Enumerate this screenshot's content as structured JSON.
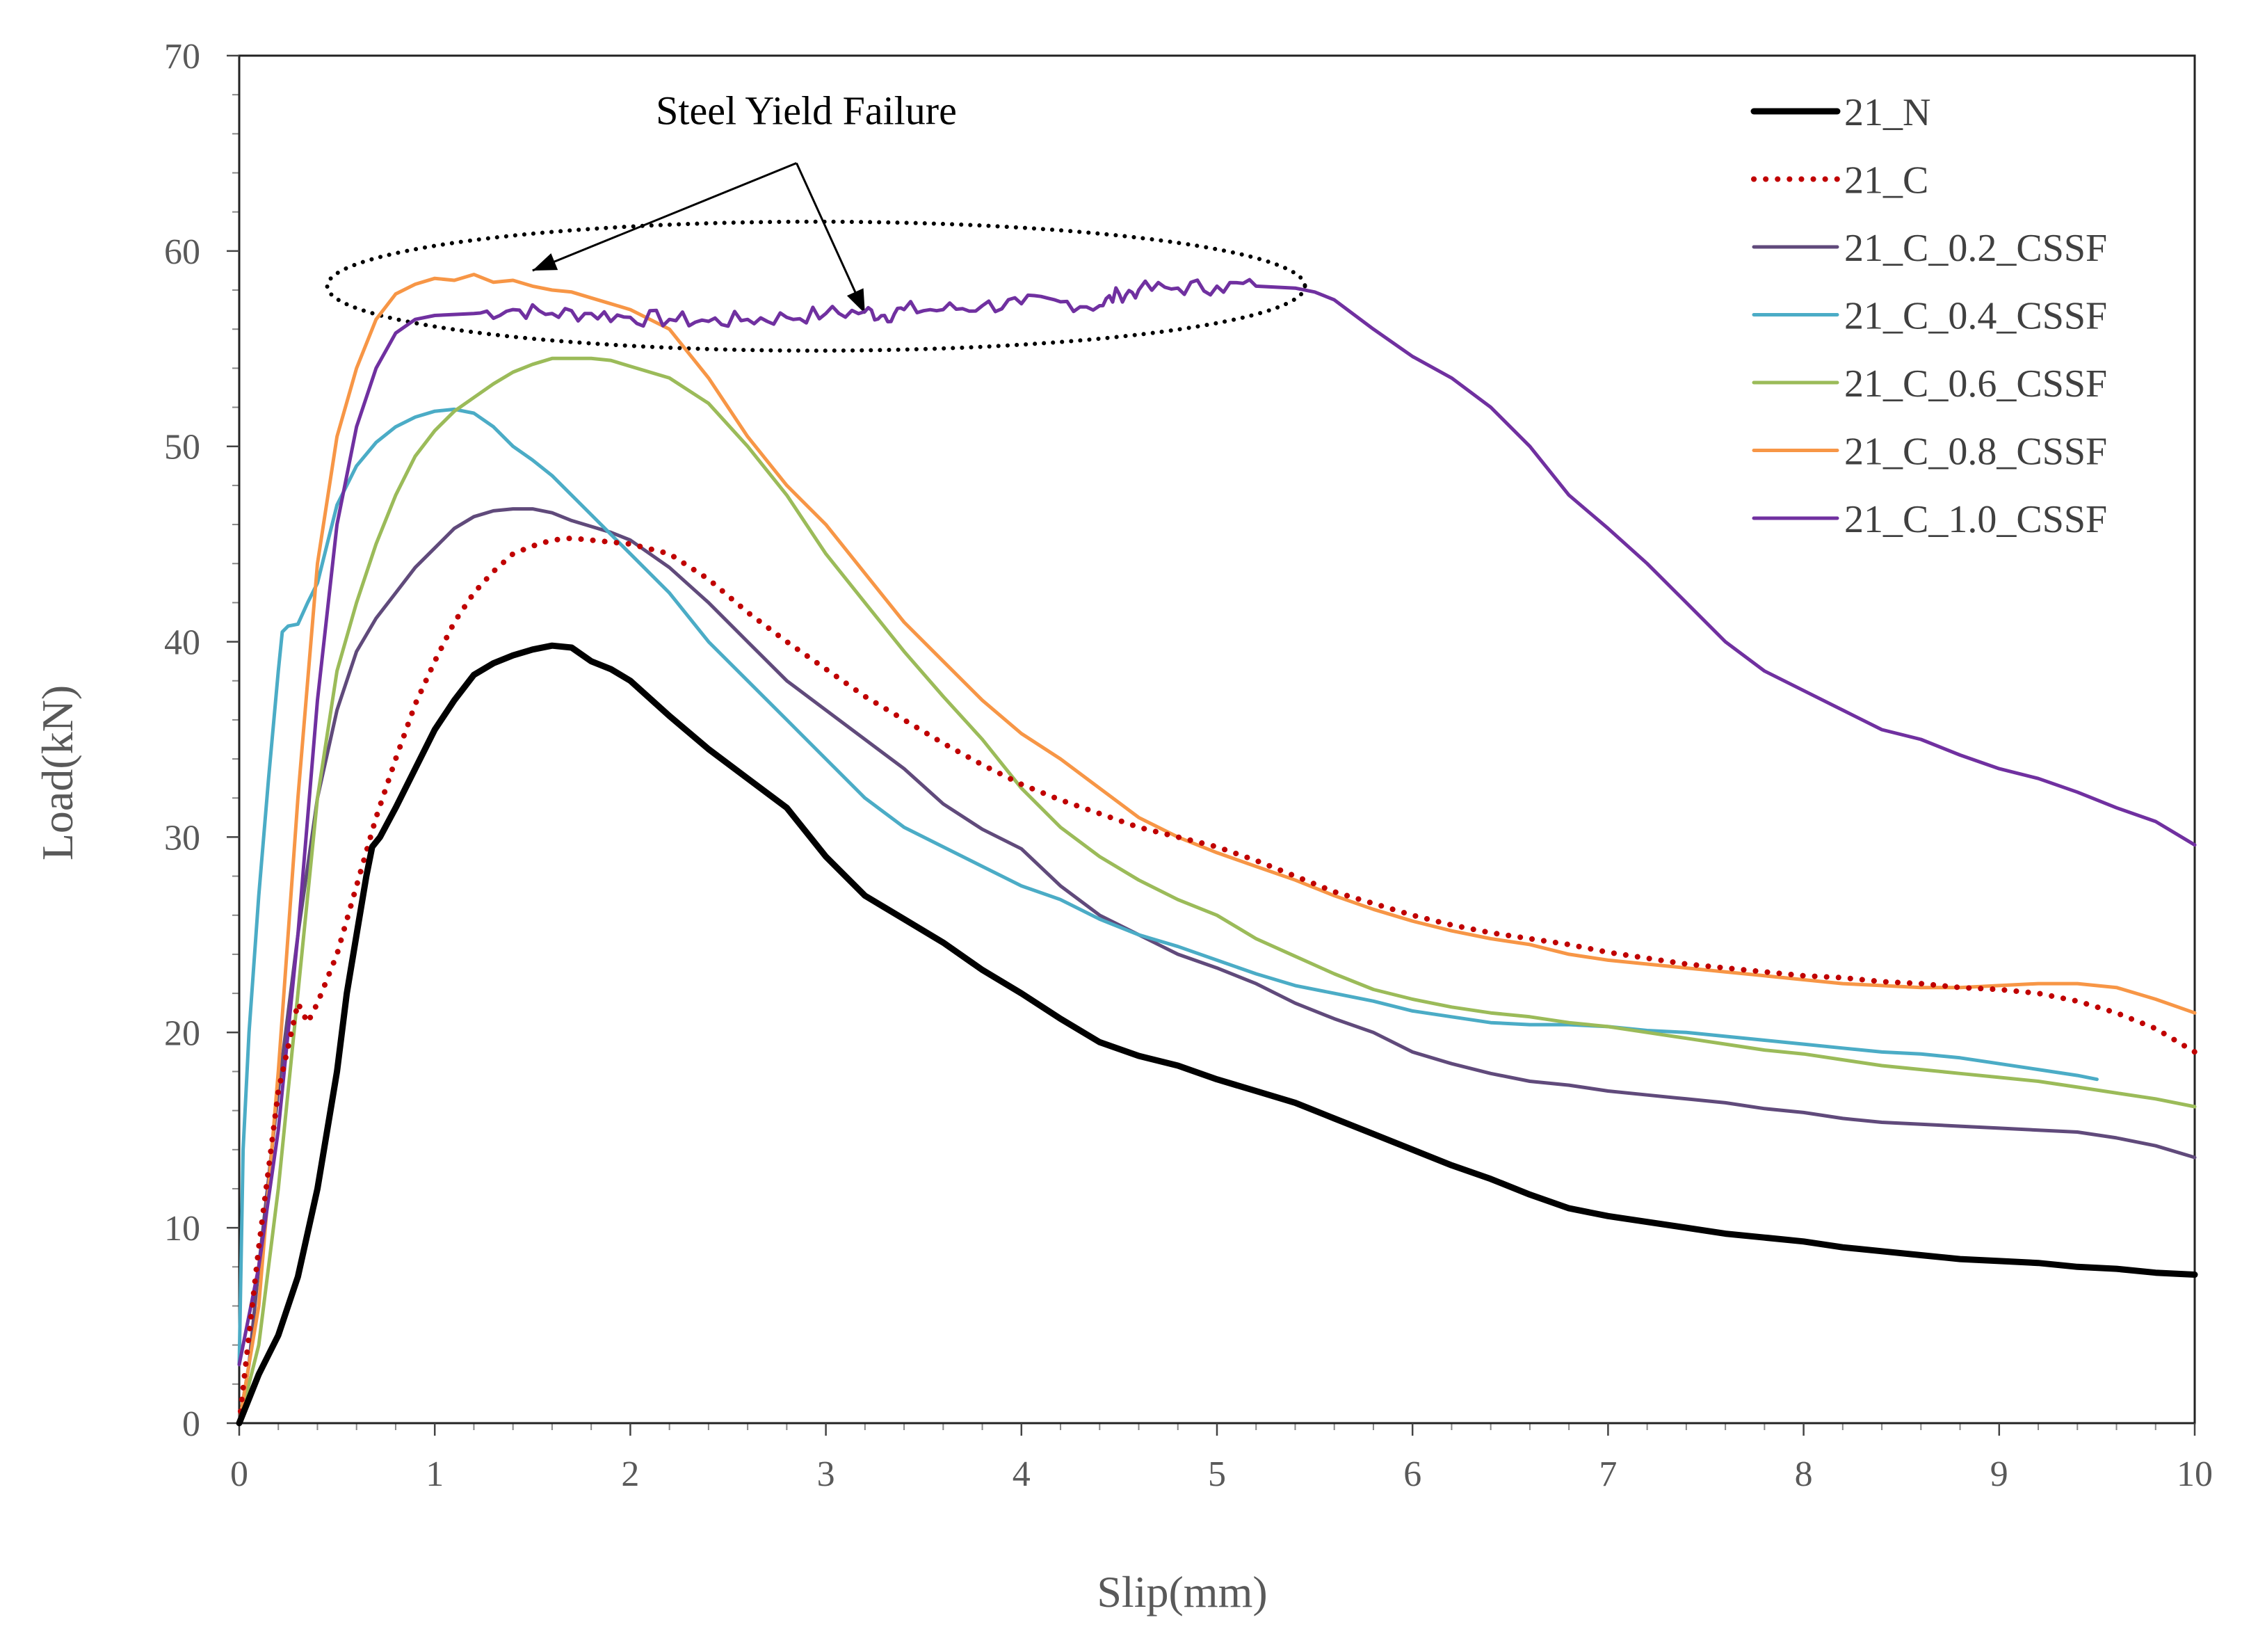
{
  "chart_data": {
    "type": "line",
    "title": "",
    "xlabel": "Slip(mm)",
    "ylabel": "Load(kN)",
    "xlim": [
      0,
      10
    ],
    "ylim": [
      0,
      70
    ],
    "xticks": [
      0,
      1,
      2,
      3,
      4,
      5,
      6,
      7,
      8,
      9,
      10
    ],
    "yticks": [
      0,
      10,
      20,
      30,
      40,
      50,
      60,
      70
    ],
    "grid": false,
    "legend_position": "top-right",
    "annotation": {
      "text": "Steel Yield Failure",
      "ellipse_center": [
        2.95,
        58.2
      ],
      "ellipse_semi_axes": [
        2.5,
        3.3
      ],
      "label_position": [
        2.9,
        66.5
      ],
      "arrow_origin": [
        2.85,
        64.5
      ],
      "arrow_targets": [
        [
          1.5,
          59.0
        ],
        [
          3.2,
          56.8
        ]
      ]
    },
    "series": [
      {
        "name": "21_N",
        "color": "#000000",
        "style": "solid-bold",
        "x": [
          0,
          0.1,
          0.2,
          0.3,
          0.4,
          0.5,
          0.55,
          0.6,
          0.65,
          0.68,
          0.72,
          0.8,
          0.9,
          1.0,
          1.1,
          1.2,
          1.3,
          1.4,
          1.5,
          1.6,
          1.7,
          1.8,
          1.9,
          2.0,
          2.2,
          2.4,
          2.6,
          2.8,
          3.0,
          3.2,
          3.4,
          3.6,
          3.8,
          4.0,
          4.2,
          4.4,
          4.6,
          4.8,
          5.0,
          5.2,
          5.4,
          5.6,
          5.8,
          6.0,
          6.2,
          6.4,
          6.6,
          6.8,
          7.0,
          7.2,
          7.4,
          7.6,
          7.8,
          8.0,
          8.2,
          8.4,
          8.6,
          8.8,
          9.0,
          9.2,
          9.4,
          9.6,
          9.8,
          10.0
        ],
        "values": [
          0,
          2.5,
          4.5,
          7.5,
          12.0,
          18.0,
          22.0,
          25.0,
          28.0,
          29.5,
          30.0,
          31.5,
          33.5,
          35.5,
          37.0,
          38.3,
          38.9,
          39.3,
          39.6,
          39.8,
          39.7,
          39.0,
          38.6,
          38.0,
          36.2,
          34.5,
          33.0,
          31.5,
          29.0,
          27.0,
          25.8,
          24.6,
          23.2,
          22.0,
          20.7,
          19.5,
          18.8,
          18.3,
          17.6,
          17.0,
          16.4,
          15.6,
          14.8,
          14.0,
          13.2,
          12.5,
          11.7,
          11.0,
          10.6,
          10.3,
          10.0,
          9.7,
          9.5,
          9.3,
          9.0,
          8.8,
          8.6,
          8.4,
          8.3,
          8.2,
          8.0,
          7.9,
          7.7,
          7.6
        ]
      },
      {
        "name": "21_C",
        "color": "#c00000",
        "style": "dotted",
        "x": [
          0,
          0.1,
          0.2,
          0.3,
          0.35,
          0.4,
          0.5,
          0.6,
          0.7,
          0.8,
          0.9,
          1.0,
          1.1,
          1.2,
          1.3,
          1.4,
          1.5,
          1.6,
          1.7,
          1.8,
          1.9,
          2.0,
          2.2,
          2.4,
          2.6,
          2.8,
          3.0,
          3.2,
          3.4,
          3.6,
          3.8,
          4.0,
          4.2,
          4.4,
          4.6,
          4.8,
          5.0,
          5.2,
          5.4,
          5.6,
          5.8,
          6.0,
          6.2,
          6.4,
          6.6,
          6.8,
          7.0,
          7.2,
          7.4,
          7.6,
          7.8,
          8.0,
          8.2,
          8.4,
          8.6,
          8.8,
          9.0,
          9.2,
          9.4,
          9.6,
          9.8,
          10.0
        ],
        "values": [
          0,
          9.0,
          17.0,
          21.5,
          20.5,
          21.5,
          24.0,
          27.5,
          31.0,
          34.0,
          36.8,
          39.0,
          41.0,
          42.5,
          43.6,
          44.5,
          44.9,
          45.2,
          45.3,
          45.2,
          45.1,
          45.0,
          44.5,
          43.2,
          41.5,
          40.0,
          38.6,
          37.2,
          36.0,
          34.8,
          33.7,
          32.7,
          31.9,
          31.2,
          30.5,
          30.0,
          29.5,
          28.8,
          28.0,
          27.2,
          26.6,
          26.0,
          25.5,
          25.1,
          24.8,
          24.5,
          24.1,
          23.8,
          23.5,
          23.3,
          23.1,
          22.9,
          22.8,
          22.6,
          22.5,
          22.3,
          22.2,
          22.0,
          21.6,
          21.0,
          20.2,
          19.0
        ]
      },
      {
        "name": "21_C_0.2_CSSF",
        "color": "#604a7b",
        "style": "solid",
        "x": [
          0,
          0.05,
          0.1,
          0.15,
          0.2,
          0.3,
          0.4,
          0.5,
          0.6,
          0.7,
          0.8,
          0.9,
          1.0,
          1.1,
          1.2,
          1.3,
          1.4,
          1.5,
          1.6,
          1.7,
          1.8,
          1.9,
          2.0,
          2.2,
          2.4,
          2.6,
          2.8,
          3.0,
          3.2,
          3.4,
          3.6,
          3.8,
          4.0,
          4.2,
          4.4,
          4.6,
          4.8,
          5.0,
          5.2,
          5.4,
          5.6,
          5.8,
          6.0,
          6.2,
          6.4,
          6.6,
          6.8,
          7.0,
          7.2,
          7.4,
          7.6,
          7.8,
          8.0,
          8.2,
          8.4,
          8.6,
          8.8,
          9.0,
          9.2,
          9.4,
          9.6,
          9.8,
          10.0
        ],
        "values": [
          0,
          3.0,
          8.0,
          12.5,
          17.0,
          25.0,
          32.0,
          36.5,
          39.5,
          41.2,
          42.5,
          43.8,
          44.8,
          45.8,
          46.4,
          46.7,
          46.8,
          46.8,
          46.6,
          46.2,
          45.9,
          45.6,
          45.2,
          43.8,
          42.0,
          40.0,
          38.0,
          36.5,
          35.0,
          33.5,
          31.7,
          30.4,
          29.4,
          27.5,
          26.0,
          25.0,
          24.0,
          23.3,
          22.5,
          21.5,
          20.7,
          20.0,
          19.0,
          18.4,
          17.9,
          17.5,
          17.3,
          17.0,
          16.8,
          16.6,
          16.4,
          16.1,
          15.9,
          15.6,
          15.4,
          15.3,
          15.2,
          15.1,
          15.0,
          14.9,
          14.6,
          14.2,
          13.6
        ]
      },
      {
        "name": "21_C_0.4_CSSF",
        "color": "#4bacc6",
        "style": "solid",
        "x": [
          0,
          0.02,
          0.05,
          0.1,
          0.15,
          0.2,
          0.22,
          0.25,
          0.3,
          0.35,
          0.4,
          0.45,
          0.5,
          0.6,
          0.7,
          0.8,
          0.9,
          1.0,
          1.1,
          1.2,
          1.3,
          1.4,
          1.5,
          1.6,
          1.7,
          1.8,
          1.9,
          2.0,
          2.2,
          2.4,
          2.6,
          2.8,
          3.0,
          3.2,
          3.4,
          3.6,
          3.8,
          4.0,
          4.2,
          4.4,
          4.6,
          4.8,
          5.0,
          5.2,
          5.4,
          5.6,
          5.8,
          6.0,
          6.2,
          6.4,
          6.6,
          6.8,
          7.0,
          7.2,
          7.4,
          7.6,
          7.8,
          8.0,
          8.2,
          8.4,
          8.6,
          8.8,
          9.0,
          9.2,
          9.4,
          9.5
        ],
        "values": [
          3.0,
          14.0,
          20.0,
          27.0,
          33.0,
          38.5,
          40.5,
          40.8,
          40.9,
          42.0,
          43.0,
          45.0,
          47.0,
          49.0,
          50.2,
          51.0,
          51.5,
          51.8,
          51.9,
          51.7,
          51.0,
          50.0,
          49.3,
          48.5,
          47.5,
          46.5,
          45.5,
          44.5,
          42.5,
          40.0,
          38.0,
          36.0,
          34.0,
          32.0,
          30.5,
          29.5,
          28.5,
          27.5,
          26.8,
          25.8,
          25.0,
          24.4,
          23.7,
          23.0,
          22.4,
          22.0,
          21.6,
          21.1,
          20.8,
          20.5,
          20.4,
          20.4,
          20.3,
          20.1,
          20.0,
          19.8,
          19.6,
          19.4,
          19.2,
          19.0,
          18.9,
          18.7,
          18.4,
          18.1,
          17.8,
          17.6
        ]
      },
      {
        "name": "21_C_0.6_CSSF",
        "color": "#9bbb59",
        "style": "solid",
        "x": [
          0,
          0.1,
          0.2,
          0.3,
          0.4,
          0.5,
          0.6,
          0.7,
          0.8,
          0.9,
          1.0,
          1.1,
          1.2,
          1.3,
          1.4,
          1.5,
          1.6,
          1.7,
          1.8,
          1.9,
          2.0,
          2.2,
          2.4,
          2.6,
          2.8,
          3.0,
          3.2,
          3.4,
          3.6,
          3.8,
          4.0,
          4.2,
          4.4,
          4.6,
          4.8,
          5.0,
          5.2,
          5.4,
          5.6,
          5.8,
          6.0,
          6.2,
          6.4,
          6.6,
          6.8,
          7.0,
          7.2,
          7.4,
          7.6,
          7.8,
          8.0,
          8.2,
          8.4,
          8.6,
          8.8,
          9.0,
          9.2,
          9.4,
          9.6,
          9.8,
          10.0
        ],
        "values": [
          0,
          4.0,
          12.0,
          22.0,
          32.0,
          38.5,
          42.0,
          45.0,
          47.5,
          49.5,
          50.8,
          51.8,
          52.5,
          53.2,
          53.8,
          54.2,
          54.5,
          54.5,
          54.5,
          54.4,
          54.1,
          53.5,
          52.2,
          50.0,
          47.5,
          44.5,
          42.0,
          39.5,
          37.2,
          35.0,
          32.5,
          30.5,
          29.0,
          27.8,
          26.8,
          26.0,
          24.8,
          23.9,
          23.0,
          22.2,
          21.7,
          21.3,
          21.0,
          20.8,
          20.5,
          20.3,
          20.0,
          19.7,
          19.4,
          19.1,
          18.9,
          18.6,
          18.3,
          18.1,
          17.9,
          17.7,
          17.5,
          17.2,
          16.9,
          16.6,
          16.2
        ]
      },
      {
        "name": "21_C_0.8_CSSF",
        "color": "#f79646",
        "style": "solid",
        "x": [
          0,
          0.1,
          0.2,
          0.3,
          0.4,
          0.5,
          0.6,
          0.7,
          0.8,
          0.9,
          1.0,
          1.1,
          1.2,
          1.3,
          1.4,
          1.5,
          1.6,
          1.7,
          1.8,
          1.9,
          2.0,
          2.2,
          2.4,
          2.6,
          2.8,
          3.0,
          3.2,
          3.4,
          3.6,
          3.8,
          4.0,
          4.2,
          4.4,
          4.6,
          4.8,
          5.0,
          5.2,
          5.4,
          5.6,
          5.8,
          6.0,
          6.2,
          6.4,
          6.6,
          6.8,
          7.0,
          7.2,
          7.4,
          7.6,
          7.8,
          8.0,
          8.2,
          8.4,
          8.6,
          8.8,
          9.0,
          9.2,
          9.4,
          9.6,
          9.8,
          10.0
        ],
        "values": [
          0,
          6.0,
          18.0,
          32.0,
          44.0,
          50.5,
          54.0,
          56.5,
          57.8,
          58.3,
          58.6,
          58.5,
          58.8,
          58.4,
          58.5,
          58.2,
          58.0,
          57.9,
          57.6,
          57.3,
          57.0,
          56.0,
          53.5,
          50.5,
          48.0,
          46.0,
          43.5,
          41.0,
          39.0,
          37.0,
          35.3,
          34.0,
          32.5,
          31.0,
          30.0,
          29.2,
          28.5,
          27.8,
          27.0,
          26.3,
          25.7,
          25.2,
          24.8,
          24.5,
          24.0,
          23.7,
          23.5,
          23.3,
          23.1,
          22.9,
          22.7,
          22.5,
          22.4,
          22.3,
          22.3,
          22.4,
          22.5,
          22.5,
          22.3,
          21.7,
          21.0
        ]
      },
      {
        "name": "21_C_1.0_CSSF",
        "color": "#7030a0",
        "style": "solid",
        "jitter": true,
        "x": [
          0,
          0.1,
          0.2,
          0.3,
          0.4,
          0.5,
          0.6,
          0.7,
          0.8,
          0.9,
          1.0,
          1.2,
          1.4,
          1.6,
          1.8,
          2.0,
          2.2,
          2.4,
          2.6,
          2.8,
          3.0,
          3.2,
          3.3,
          3.4,
          3.6,
          3.8,
          4.0,
          4.2,
          4.4,
          4.5,
          4.6,
          4.8,
          5.0,
          5.2,
          5.4,
          5.5,
          5.6,
          5.8,
          6.0,
          6.2,
          6.4,
          6.6,
          6.8,
          7.0,
          7.2,
          7.4,
          7.6,
          7.8,
          8.0,
          8.2,
          8.4,
          8.6,
          8.8,
          9.0,
          9.2,
          9.4,
          9.6,
          9.8,
          10.0
        ],
        "values": [
          3.0,
          8.0,
          15.0,
          25.0,
          37.0,
          46.0,
          51.0,
          54.0,
          55.8,
          56.5,
          56.7,
          56.8,
          57.0,
          56.8,
          56.8,
          56.6,
          56.5,
          56.4,
          56.5,
          56.6,
          56.8,
          56.9,
          56.7,
          57.0,
          57.0,
          57.2,
          57.3,
          57.4,
          57.2,
          57.8,
          58.0,
          58.1,
          58.2,
          58.2,
          58.1,
          57.9,
          57.5,
          56.0,
          54.6,
          53.5,
          52.0,
          50.0,
          47.5,
          45.8,
          44.0,
          42.0,
          40.0,
          38.5,
          37.5,
          36.5,
          35.5,
          35.0,
          34.2,
          33.5,
          33.0,
          32.3,
          31.5,
          30.8,
          29.6
        ]
      }
    ]
  }
}
